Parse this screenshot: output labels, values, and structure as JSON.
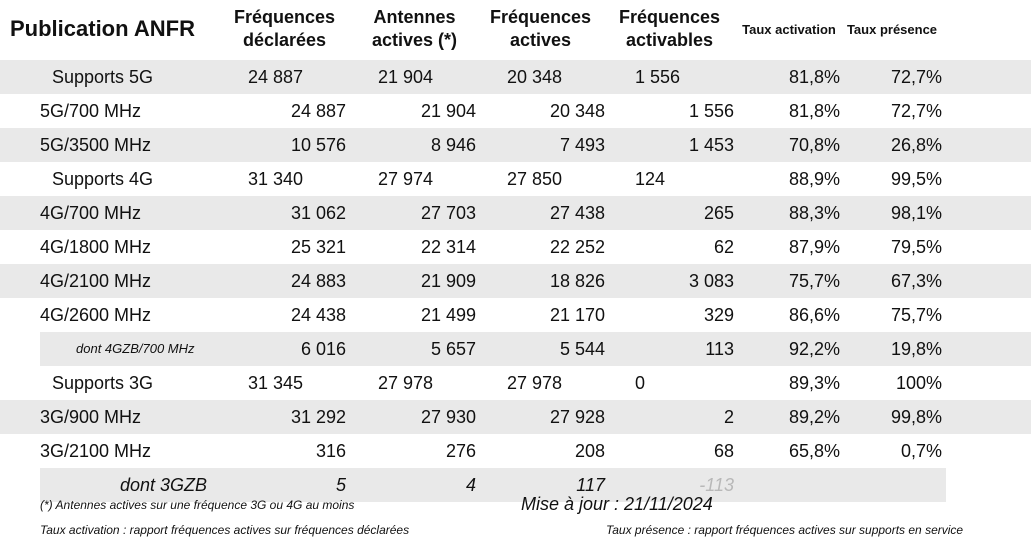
{
  "title": "Publication ANFR",
  "headers": {
    "freq_declarees": [
      "Fréquences",
      "déclarées"
    ],
    "antennes_actives": [
      "Antennes",
      "actives (*)"
    ],
    "freq_actives": [
      "Fréquences",
      "actives"
    ],
    "freq_activables": [
      "Fréquences",
      "activables"
    ],
    "taux_activation": "Taux activation",
    "taux_presence": "Taux présence"
  },
  "rows": [
    {
      "type": "support",
      "label": "Supports 5G",
      "decl": "24 887",
      "ant": "21 904",
      "act": "20 348",
      "activ": "1 556",
      "taux_act": "81,8%",
      "taux_pres": "72,7%"
    },
    {
      "type": "band",
      "label": "5G/700 MHz",
      "decl": "24 887",
      "ant": "21 904",
      "act": "20 348",
      "activ": "1 556",
      "taux_act": "81,8%",
      "taux_pres": "72,7%"
    },
    {
      "type": "band",
      "label": "5G/3500 MHz",
      "decl": "10 576",
      "ant": "8 946",
      "act": "7 493",
      "activ": "1 453",
      "taux_act": "70,8%",
      "taux_pres": "26,8%"
    },
    {
      "type": "support",
      "label": "Supports 4G",
      "decl": "31 340",
      "ant": "27 974",
      "act": "27 850",
      "activ": "124",
      "taux_act": "88,9%",
      "taux_pres": "99,5%"
    },
    {
      "type": "band",
      "label": "4G/700 MHz",
      "decl": "31 062",
      "ant": "27 703",
      "act": "27 438",
      "activ": "265",
      "taux_act": "88,3%",
      "taux_pres": "98,1%"
    },
    {
      "type": "band",
      "label": "4G/1800 MHz",
      "decl": "25 321",
      "ant": "22 314",
      "act": "22 252",
      "activ": "62",
      "taux_act": "87,9%",
      "taux_pres": "79,5%"
    },
    {
      "type": "band",
      "label": "4G/2100 MHz",
      "decl": "24 883",
      "ant": "21 909",
      "act": "18 826",
      "activ": "3 083",
      "taux_act": "75,7%",
      "taux_pres": "67,3%"
    },
    {
      "type": "band",
      "label": "4G/2600 MHz",
      "decl": "24 438",
      "ant": "21 499",
      "act": "21 170",
      "activ": "329",
      "taux_act": "86,6%",
      "taux_pres": "75,7%"
    },
    {
      "type": "sub",
      "label": "dont 4GZB/700 MHz",
      "decl": "6 016",
      "ant": "5 657",
      "act": "5 544",
      "activ": "113",
      "taux_act": "92,2%",
      "taux_pres": "19,8%"
    },
    {
      "type": "support",
      "label": "Supports 3G",
      "decl": "31 345",
      "ant": "27 978",
      "act": "27 978",
      "activ": "0",
      "taux_act": "89,3%",
      "taux_pres": "100%"
    },
    {
      "type": "band",
      "label": "3G/900 MHz",
      "decl": "31 292",
      "ant": "27 930",
      "act": "27 928",
      "activ": "2",
      "taux_act": "89,2%",
      "taux_pres": "99,8%"
    },
    {
      "type": "band",
      "label": "3G/2100 MHz",
      "decl": "316",
      "ant": "276",
      "act": "208",
      "activ": "68",
      "taux_act": "65,8%",
      "taux_pres": "0,7%"
    },
    {
      "type": "dont3",
      "label": "dont 3GZB",
      "decl": "5",
      "ant": "4",
      "act": "117",
      "activ": "-113",
      "taux_act": "",
      "taux_pres": ""
    }
  ],
  "footer": {
    "note_antennes": "(*) Antennes actives sur une fréquence 3G ou 4G au moins",
    "note_activation": "Taux activation : rapport fréquences actives sur fréquences déclarées",
    "update": "Mise à jour : 21/11/2024",
    "note_presence": "Taux présence : rapport fréquences actives sur supports en service"
  }
}
